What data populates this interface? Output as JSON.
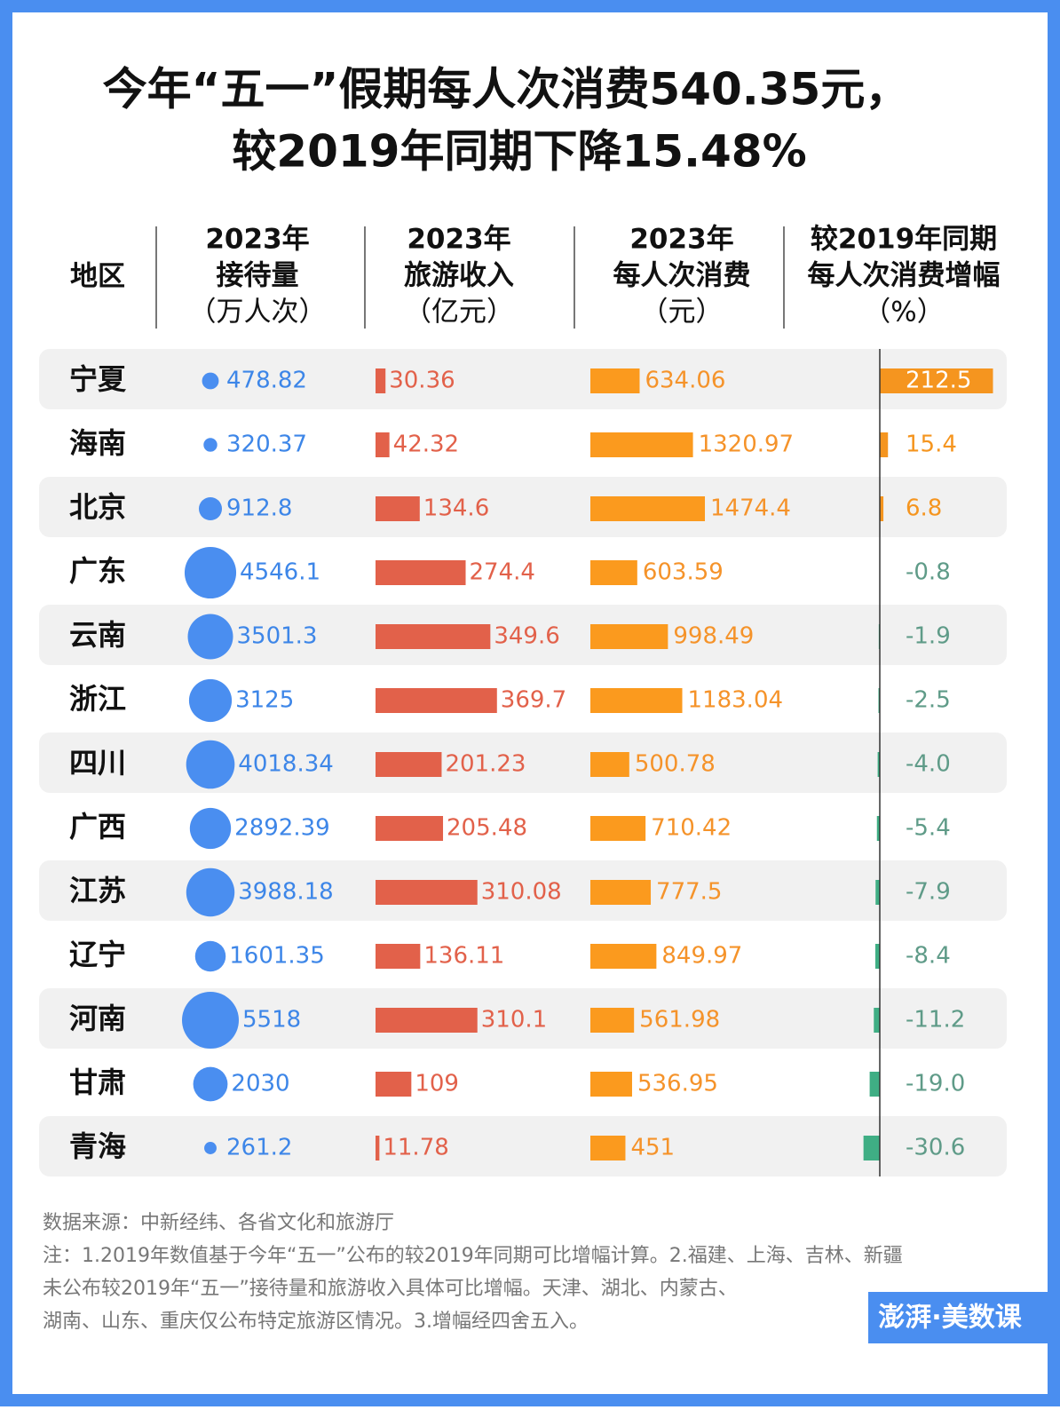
{
  "title": [
    "今年“五一”假期每人次消费540.35元，",
    "较2019年同期下降15.48%"
  ],
  "headers": [
    [
      "地区"
    ],
    [
      "2023年",
      "接待量",
      "（万人次）"
    ],
    [
      "2023年",
      "旅游收入",
      "（亿元）"
    ],
    [
      "2023年",
      "每人次消费",
      "（元）"
    ],
    [
      "较2019年同期",
      "每人次消费增幅",
      "（%）"
    ]
  ],
  "regions": [
    "宁夏",
    "海南",
    "北京",
    "广东",
    "云南",
    "浙江",
    "四川",
    "广西",
    "江苏",
    "辽宁",
    "河南",
    "甘肃",
    "青海"
  ],
  "visitors": {
    "color": "#4a8ef0",
    "text_color": "#3d86e8",
    "values": [
      478.82,
      320.37,
      912.8,
      4546.1,
      3501.3,
      3125,
      4018.34,
      2892.39,
      3988.18,
      1601.35,
      5518,
      2030,
      261.2
    ]
  },
  "revenue": {
    "color": "#e2614a",
    "text_color": "#e2614a",
    "values": [
      30.36,
      42.32,
      134.6,
      274.4,
      349.6,
      369.7,
      201.23,
      205.48,
      310.08,
      136.11,
      310.1,
      109,
      11.78
    ]
  },
  "spend": {
    "color": "#fb9a1e",
    "text_color": "#f5932a",
    "values": [
      634.06,
      1320.97,
      1474.4,
      603.59,
      998.49,
      1183.04,
      500.78,
      710.42,
      777.5,
      849.97,
      561.98,
      536.95,
      451
    ]
  },
  "change": {
    "positive_color": "#f5951f",
    "negative_color": "#3fae84",
    "negative_text_color": "#5f9b88",
    "values": [
      212.5,
      15.4,
      6.8,
      -0.8,
      -1.9,
      -2.5,
      -4,
      -5.4,
      -7.9,
      -8.4,
      -11.2,
      -19,
      -30.6
    ],
    "value_labels": [
      "212.5",
      "15.4",
      "6.8",
      "-0.8",
      "-1.9",
      "-2.5",
      "-4.0",
      "-5.4",
      "-7.9",
      "-8.4",
      "-11.2",
      "-19.0",
      "-30.6"
    ]
  },
  "source": "数据来源：中新经纬、各省文化和旅游厅",
  "notes": [
    "注：1.2019年数值基于今年“五一”公布的较2019年同期可比增幅计算。2.福建、上海、吉林、新疆",
    "未公布较2019年“五一”接待量和旅游收入具体可比增幅。天津、湖北、内蒙古、",
    "湖南、山东、重庆仅公布特定旅游区情况。3.增幅经四舍五入。"
  ],
  "logo": "澎湃·美数课"
}
